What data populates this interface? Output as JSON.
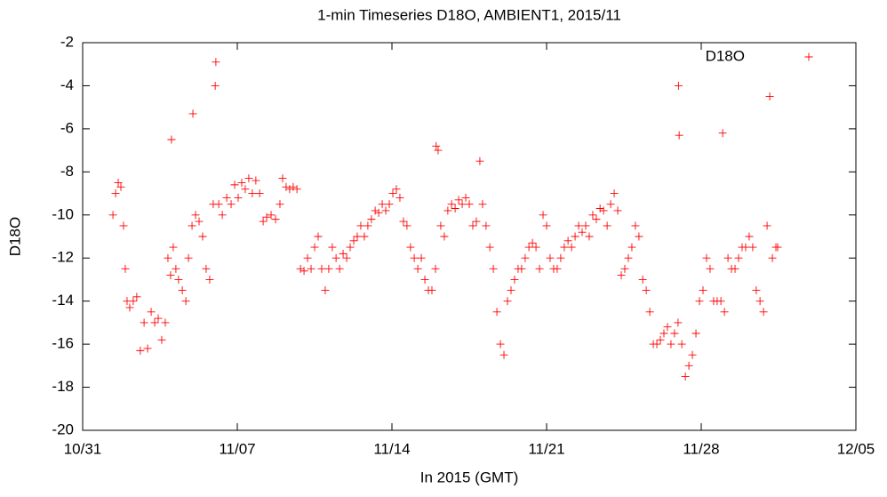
{
  "chart_data": {
    "type": "scatter",
    "title": "1-min Timeseries D18O, AMBIENT1, 2015/11",
    "x_label": "In 2015 (GMT)",
    "y_label": "D18O",
    "legend": "top right",
    "xlim": [
      0,
      35
    ],
    "xticks": [
      {
        "value": 0,
        "label": "10/31"
      },
      {
        "value": 7,
        "label": "11/07"
      },
      {
        "value": 14,
        "label": "11/14"
      },
      {
        "value": 21,
        "label": "11/21"
      },
      {
        "value": 28,
        "label": "11/28"
      },
      {
        "value": 35,
        "label": "12/05"
      }
    ],
    "ylim": [
      -20,
      -2
    ],
    "yticks": [
      -20,
      -18,
      -16,
      -14,
      -12,
      -10,
      -8,
      -6,
      -4,
      -2
    ],
    "x": [
      1.37,
      1.49,
      1.61,
      1.73,
      1.85,
      1.93,
      2.01,
      2.13,
      2.29,
      2.45,
      2.61,
      2.78,
      2.94,
      3.1,
      3.26,
      3.42,
      3.58,
      3.74,
      3.86,
      3.98,
      4.02,
      4.1,
      4.22,
      4.34,
      4.51,
      4.67,
      4.79,
      4.95,
      4.99,
      5.11,
      5.27,
      5.43,
      5.59,
      5.75,
      5.91,
      6.0,
      6.03,
      6.16,
      6.32,
      6.52,
      6.72,
      6.88,
      7.04,
      7.2,
      7.36,
      7.52,
      7.68,
      7.84,
      8.01,
      8.17,
      8.33,
      8.53,
      8.73,
      8.93,
      9.05,
      9.21,
      9.37,
      9.53,
      9.7,
      9.86,
      10.02,
      10.18,
      10.34,
      10.5,
      10.66,
      10.82,
      10.98,
      11.14,
      11.3,
      11.47,
      11.63,
      11.79,
      11.95,
      12.11,
      12.27,
      12.43,
      12.59,
      12.75,
      12.91,
      13.07,
      13.24,
      13.4,
      13.56,
      13.72,
      13.88,
      14.04,
      14.2,
      14.36,
      14.52,
      14.68,
      14.84,
      15.01,
      15.17,
      15.33,
      15.49,
      15.65,
      15.81,
      15.97,
      16.0,
      16.09,
      16.21,
      16.37,
      16.53,
      16.7,
      16.86,
      17.02,
      17.18,
      17.34,
      17.5,
      17.66,
      17.82,
      17.98,
      18.1,
      18.26,
      18.43,
      18.59,
      18.75,
      18.91,
      19.07,
      19.23,
      19.39,
      19.55,
      19.71,
      19.87,
      20.03,
      20.2,
      20.36,
      20.52,
      20.68,
      20.84,
      21.0,
      21.16,
      21.32,
      21.48,
      21.64,
      21.8,
      21.97,
      22.13,
      22.29,
      22.45,
      22.61,
      22.77,
      22.93,
      23.09,
      23.25,
      23.42,
      23.58,
      23.74,
      23.9,
      24.06,
      24.22,
      24.38,
      24.54,
      24.7,
      24.86,
      25.02,
      25.18,
      25.35,
      25.51,
      25.67,
      25.83,
      25.99,
      26.15,
      26.31,
      26.47,
      26.63,
      26.79,
      26.95,
      26.97,
      27.0,
      27.12,
      27.28,
      27.44,
      27.6,
      27.76,
      27.92,
      28.08,
      28.24,
      28.4,
      28.56,
      28.72,
      28.89,
      28.97,
      29.05,
      29.21,
      29.37,
      29.53,
      29.69,
      29.85,
      30.01,
      30.17,
      30.33,
      30.49,
      30.66,
      30.82,
      30.98,
      31.1,
      31.22,
      31.38,
      31.46
    ],
    "series": [
      {
        "name": "D18O",
        "color": "#ff0000",
        "values": [
          -10,
          -9,
          -8.5,
          -8.7,
          -10.5,
          -12.5,
          -14,
          -14.3,
          -14,
          -13.8,
          -16.3,
          -15,
          -16.2,
          -14.5,
          -15,
          -14.8,
          -15.8,
          -15,
          -12,
          -12.8,
          -6.5,
          -11.5,
          -12.5,
          -13,
          -13.5,
          -14,
          -12,
          -10.5,
          -5.3,
          -10,
          -10.3,
          -11,
          -12.5,
          -13,
          -9.5,
          -4,
          -2.9,
          -9.5,
          -10,
          -9.2,
          -9.5,
          -8.6,
          -9.2,
          -8.5,
          -8.8,
          -8.3,
          -9,
          -8.4,
          -9,
          -10.3,
          -10.1,
          -10,
          -10.2,
          -9.5,
          -8.3,
          -8.7,
          -8.8,
          -8.7,
          -8.8,
          -12.5,
          -12.6,
          -12,
          -12.5,
          -11.5,
          -11,
          -12.5,
          -13.5,
          -12.5,
          -11.5,
          -12,
          -12.5,
          -11.8,
          -12,
          -11.5,
          -11.2,
          -11,
          -10.5,
          -11,
          -10.5,
          -10.2,
          -9.8,
          -9.9,
          -9.5,
          -9.8,
          -9.5,
          -9,
          -8.8,
          -9.2,
          -10.3,
          -10.5,
          -11.5,
          -12,
          -12.5,
          -12,
          -13,
          -13.5,
          -13.5,
          -12.5,
          -6.8,
          -7,
          -10.5,
          -11,
          -9.8,
          -9.5,
          -9.7,
          -9.3,
          -9.5,
          -9.2,
          -9.5,
          -10.5,
          -10.3,
          -7.5,
          -9.5,
          -10.5,
          -11.5,
          -12.5,
          -14.5,
          -16,
          -16.5,
          -14,
          -13.5,
          -13,
          -12.5,
          -12.5,
          -12,
          -11.5,
          -11.3,
          -11.5,
          -12.5,
          -10,
          -10.5,
          -12,
          -12.5,
          -12.5,
          -12,
          -11.5,
          -11.2,
          -11.5,
          -11,
          -10.5,
          -10.8,
          -10.5,
          -11,
          -10,
          -10.2,
          -9.7,
          -9.8,
          -10.5,
          -9.5,
          -9,
          -9.8,
          -12.8,
          -12.5,
          -12,
          -11.5,
          -10.5,
          -11,
          -13,
          -13.5,
          -14.5,
          -16,
          -16,
          -15.8,
          -15.5,
          -15.2,
          -16,
          -15.5,
          -15,
          -4,
          -6.3,
          -16,
          -17.5,
          -17,
          -16.5,
          -15.5,
          -14,
          -13.5,
          -12,
          -12.5,
          -14,
          -14,
          -14,
          -6.2,
          -14.5,
          -12,
          -12.5,
          -12.5,
          -12,
          -11.5,
          -11.5,
          -11,
          -11.5,
          -13.5,
          -14,
          -14.5,
          -10.5,
          -4.5,
          -12,
          -11.5,
          -11.5
        ]
      }
    ]
  }
}
